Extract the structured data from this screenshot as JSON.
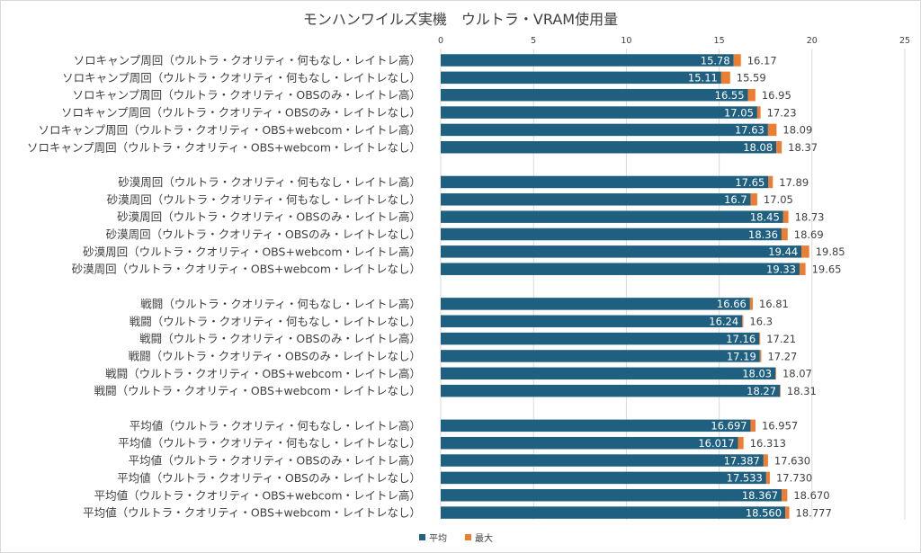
{
  "chart_data": {
    "type": "bar",
    "orientation": "horizontal",
    "stacked": true,
    "title": "モンハンワイルズ実機　ウルトラ・VRAM使用量",
    "xlim": [
      0,
      25
    ],
    "xticks": [
      "0",
      "5",
      "10",
      "15",
      "20",
      "25"
    ],
    "grid": true,
    "legend_position": "bottom",
    "colors": {
      "avg": "#1f5f80",
      "max": "#ed7d31"
    },
    "groups": [
      {
        "categories": [
          "ソロキャンプ周回（ウルトラ・クオリティ・何もなし・レイトレ高）",
          "ソロキャンプ周回（ウルトラ・クオリティ・何もなし・レイトレなし）",
          "ソロキャンプ周回（ウルトラ・クオリティ・OBSのみ・レイトレ高）",
          "ソロキャンプ周回（ウルトラ・クオリティ・OBSのみ・レイトレなし）",
          "ソロキャンプ周回（ウルトラ・クオリティ・OBS+webcom・レイトレ高）",
          "ソロキャンプ周回（ウルトラ・クオリティ・OBS+webcom・レイトレなし）"
        ],
        "avg": [
          15.78,
          15.11,
          16.55,
          17.05,
          17.63,
          18.08
        ],
        "avg_labels": [
          "15.78",
          "15.11",
          "16.55",
          "17.05",
          "17.63",
          "18.08"
        ],
        "max": [
          16.17,
          15.59,
          16.95,
          17.23,
          18.09,
          18.37
        ],
        "max_labels": [
          "16.17",
          "15.59",
          "16.95",
          "17.23",
          "18.09",
          "18.37"
        ]
      },
      {
        "categories": [
          "砂漠周回（ウルトラ・クオリティ・何もなし・レイトレ高）",
          "砂漠周回（ウルトラ・クオリティ・何もなし・レイトレなし）",
          "砂漠周回（ウルトラ・クオリティ・OBSのみ・レイトレ高）",
          "砂漠周回（ウルトラ・クオリティ・OBSのみ・レイトレなし）",
          "砂漠周回（ウルトラ・クオリティ・OBS+webcom・レイトレ高）",
          "砂漠周回（ウルトラ・クオリティ・OBS+webcom・レイトレなし）"
        ],
        "avg": [
          17.65,
          16.7,
          18.45,
          18.36,
          19.44,
          19.33
        ],
        "avg_labels": [
          "17.65",
          "16.7",
          "18.45",
          "18.36",
          "19.44",
          "19.33"
        ],
        "max": [
          17.89,
          17.05,
          18.73,
          18.69,
          19.85,
          19.65
        ],
        "max_labels": [
          "17.89",
          "17.05",
          "18.73",
          "18.69",
          "19.85",
          "19.65"
        ]
      },
      {
        "categories": [
          "戦闘（ウルトラ・クオリティ・何もなし・レイトレ高）",
          "戦闘（ウルトラ・クオリティ・何もなし・レイトレなし）",
          "戦闘（ウルトラ・クオリティ・OBSのみ・レイトレ高）",
          "戦闘（ウルトラ・クオリティ・OBSのみ・レイトレなし）",
          "戦闘（ウルトラ・クオリティ・OBS+webcom・レイトレ高）",
          "戦闘（ウルトラ・クオリティ・OBS+webcom・レイトレなし）"
        ],
        "avg": [
          16.66,
          16.24,
          17.16,
          17.19,
          18.03,
          18.27
        ],
        "avg_labels": [
          "16.66",
          "16.24",
          "17.16",
          "17.19",
          "18.03",
          "18.27"
        ],
        "max": [
          16.81,
          16.3,
          17.21,
          17.27,
          18.07,
          18.31
        ],
        "max_labels": [
          "16.81",
          "16.3",
          "17.21",
          "17.27",
          "18.07",
          "18.31"
        ]
      },
      {
        "categories": [
          "平均値（ウルトラ・クオリティ・何もなし・レイトレ高）",
          "平均値（ウルトラ・クオリティ・何もなし・レイトレなし）",
          "平均値（ウルトラ・クオリティ・OBSのみ・レイトレ高）",
          "平均値（ウルトラ・クオリティ・OBSのみ・レイトレなし）",
          "平均値（ウルトラ・クオリティ・OBS+webcom・レイトレ高）",
          "平均値（ウルトラ・クオリティ・OBS+webcom・レイトレなし）"
        ],
        "avg": [
          16.697,
          16.017,
          17.387,
          17.533,
          18.367,
          18.56
        ],
        "avg_labels": [
          "16.697",
          "16.017",
          "17.387",
          "17.533",
          "18.367",
          "18.560"
        ],
        "max": [
          16.957,
          16.313,
          17.63,
          17.73,
          18.67,
          18.777
        ],
        "max_labels": [
          "16.957",
          "16.313",
          "17.630",
          "17.730",
          "18.670",
          "18.777"
        ]
      }
    ],
    "legend": {
      "avg": "平均",
      "max": "最大"
    }
  }
}
